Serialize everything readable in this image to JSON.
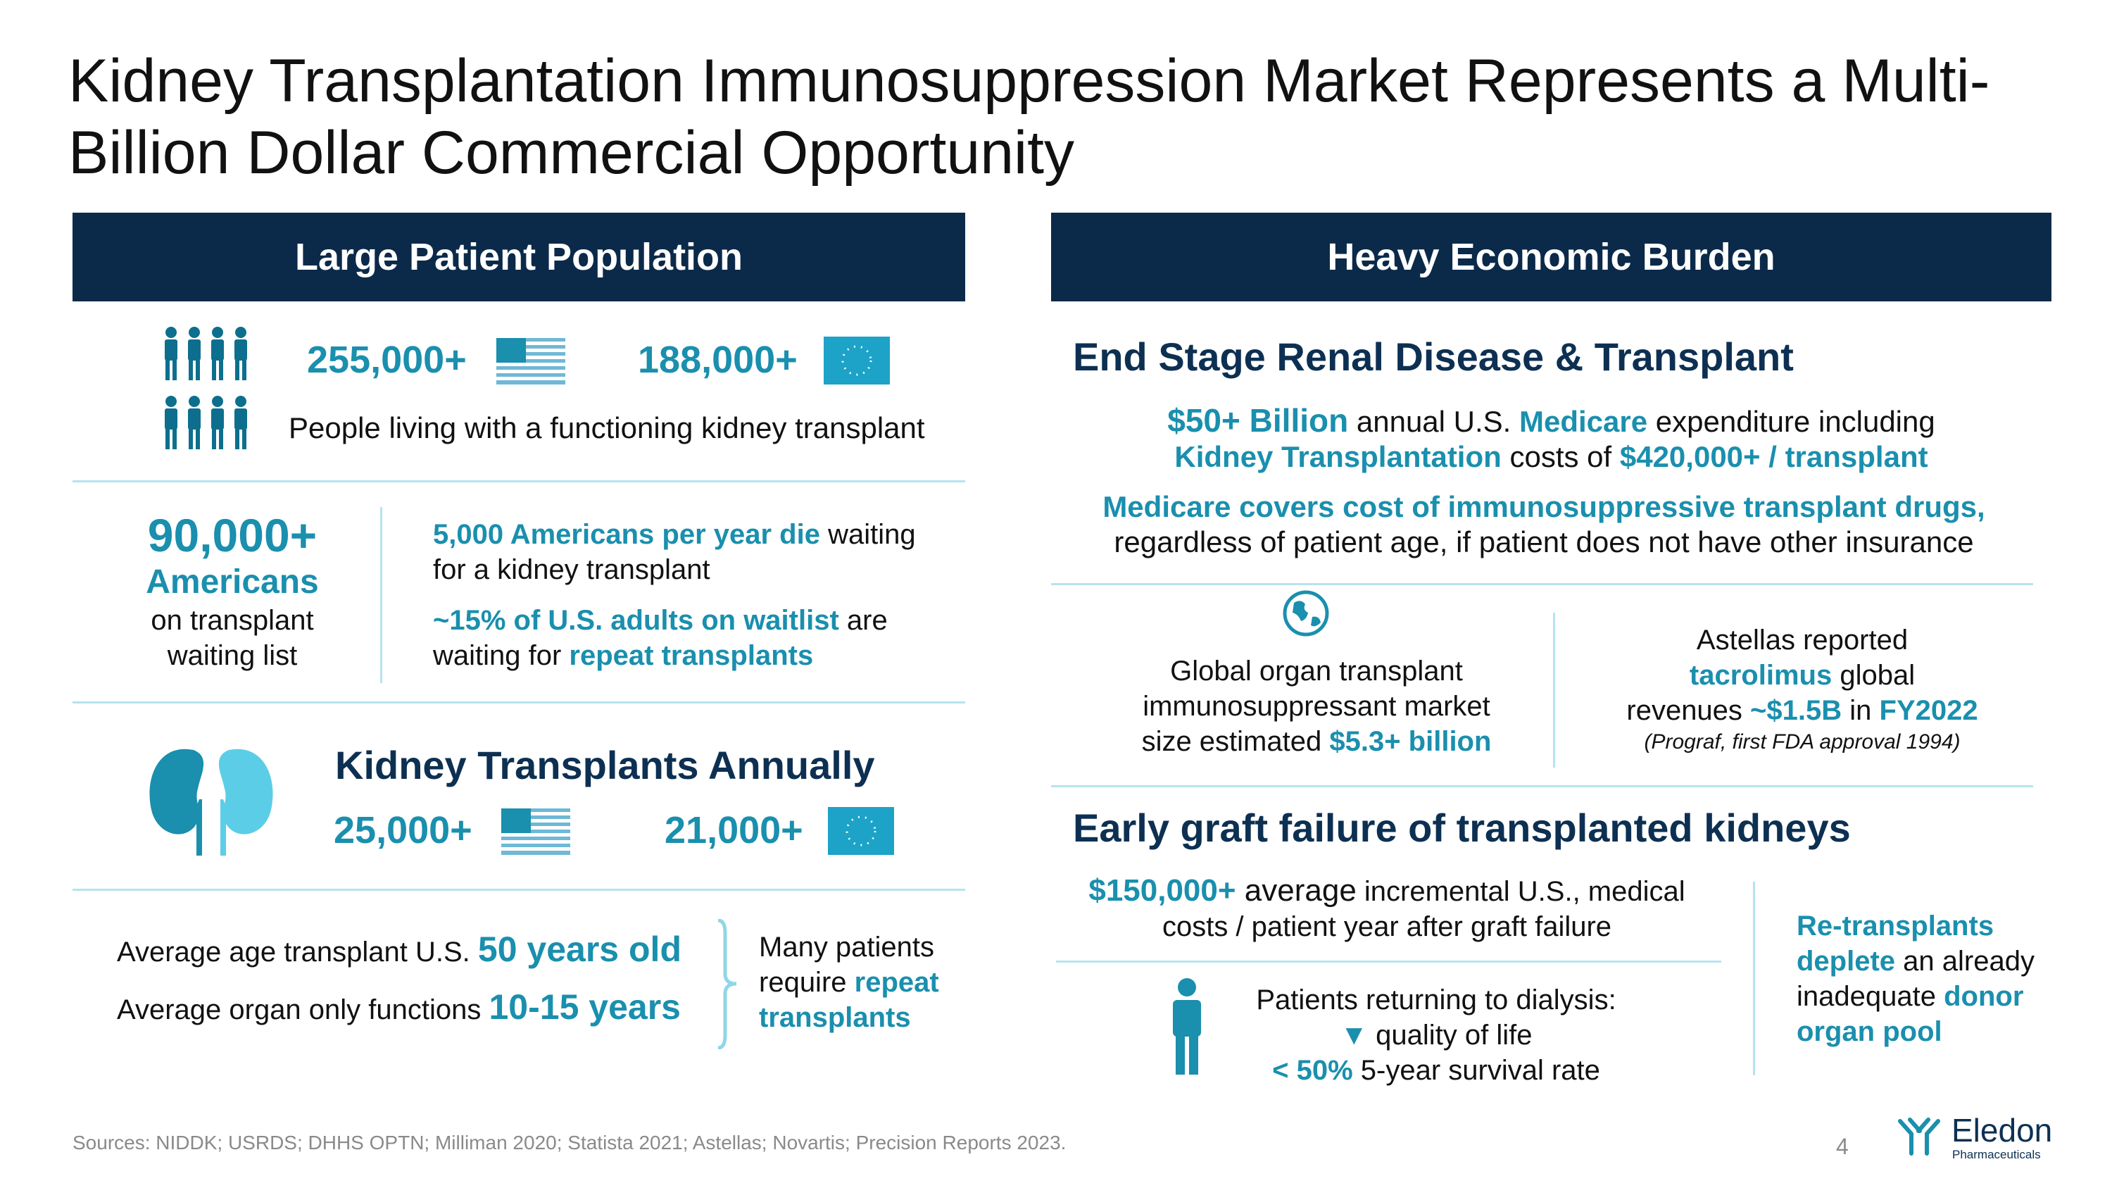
{
  "title": "Kidney Transplantation Immunosuppression Market Represents a Multi-Billion Dollar Commercial Opportunity",
  "left": {
    "header": "Large Patient Population",
    "living": {
      "us": "255,000+",
      "eu": "188,000+",
      "caption": "People living with a functioning kidney transplant"
    },
    "waitlist": {
      "big": "90,000+",
      "big2": "Americans",
      "sub1": "on transplant",
      "sub2": "waiting list",
      "p1_hl": "5,000 Americans per year die",
      "p1_rest": " waiting",
      "p1_line2": "for a kidney transplant",
      "p2_hl": "~15% of U.S. adults on waitlist",
      "p2_rest": " are",
      "p2_pre": "waiting for ",
      "p2_hl2": "repeat transplants"
    },
    "annual": {
      "title": "Kidney Transplants Annually",
      "us": "25,000+",
      "eu": "21,000+"
    },
    "age": {
      "l1": "Average age transplant U.S. ",
      "v1": "50 years old",
      "l2": "Average organ only functions ",
      "v2": "10-15 years",
      "side1": "Many patients",
      "side2_pre": "require ",
      "side2_hl": "repeat",
      "side3": "transplants"
    }
  },
  "right": {
    "header": "Heavy Economic Burden",
    "esrd": {
      "title": "End Stage Renal Disease & Transplant",
      "a_hl": "$50+ Billion",
      "a_1": " annual U.S. ",
      "a_hl2": "Medicare",
      "a_2": " expenditure including",
      "b_hl": "Kidney Transplantation",
      "b_1": " costs of ",
      "b_hl2": "$420,000+ / transplant",
      "c_hl": "Medicare covers cost of immunosuppressive transplant drugs,",
      "c_2": "regardless of patient age, if patient does not have other insurance"
    },
    "global": {
      "l1": "Global organ transplant",
      "l2": "immunosuppressant market",
      "l3_pre": "size estimated ",
      "l3_hl": "$5.3+ billion"
    },
    "astellas": {
      "l1": "Astellas reported",
      "l2_hl": "tacrolimus",
      "l2_rest": " global",
      "l3_pre": "revenues ",
      "l3_hl": "~$1.5B",
      "l3_mid": " in ",
      "l3_hl2": "FY2022",
      "l4": "(Prograf, first FDA approval 1994)"
    },
    "graft": {
      "title": "Early graft failure of transplanted kidneys",
      "a_hl": "$150,000+",
      "a_1": " average",
      "a_2": " incremental U.S., medical",
      "b": "costs / patient year after graft failure",
      "d1": "Patients returning to dialysis:",
      "d2_sym": "▼",
      "d2": " quality of life",
      "d3_hl": "< 50%",
      "d3": " 5-year survival rate",
      "r1": "Re-transplants",
      "r2_hl": "deplete",
      "r2": " an already",
      "r3_pre": "inadequate ",
      "r3_hl": "donor",
      "r4": "organ pool"
    }
  },
  "footer": {
    "sources": "Sources: NIDDK; USRDS; DHHS OPTN; Milliman 2020; Statista 2021; Astellas; Novartis; Precision Reports 2023.",
    "page": "4",
    "logo_name": "Eledon",
    "logo_sub": "Pharmaceuticals"
  },
  "colors": {
    "navy": "#0b2a4a",
    "teal": "#1a8fae",
    "divider": "#b6e3ee"
  },
  "icons": [
    "people-group-icon",
    "us-flag-icon",
    "eu-flag-icon",
    "kidneys-icon",
    "globe-icon",
    "person-icon",
    "eledon-logo-icon"
  ]
}
